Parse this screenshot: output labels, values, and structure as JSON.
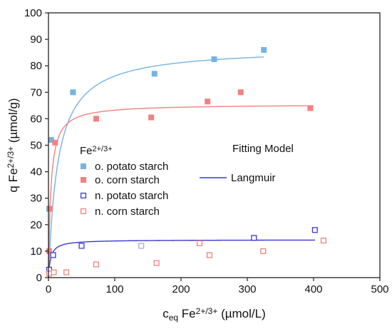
{
  "chart_data": {
    "type": "scatter",
    "xlabel": {
      "base": "c",
      "sub": "eq",
      "mid": " Fe",
      "sup": "2+/3+",
      "unit": " (µmol/L)"
    },
    "ylabel": {
      "base": "q Fe",
      "sup": "2+/3+",
      "unit": " (µmol/g)"
    },
    "xlim": [
      0,
      500
    ],
    "ylim": [
      0,
      100
    ],
    "x_ticks": [
      0,
      100,
      200,
      300,
      400,
      500
    ],
    "y_ticks": [
      0,
      10,
      20,
      30,
      40,
      50,
      60,
      70,
      80,
      90,
      100
    ],
    "grid": false,
    "legend": {
      "placement": "center-left",
      "title": {
        "base": "Fe",
        "sup": "2+/3+"
      },
      "model_title": "Fitting Model",
      "model_entry": "Langmuir"
    },
    "series": [
      {
        "name": "o. potato starch",
        "marker": "filled-square",
        "color": "#74b3e6",
        "x": [
          1,
          4,
          37,
          160,
          250,
          325
        ],
        "y": [
          26,
          52,
          70,
          77,
          82.5,
          86
        ],
        "fit": {
          "model": "Langmuir",
          "qmax": 87,
          "K": 0.07,
          "x_max": 325,
          "color": "#74b3e6"
        }
      },
      {
        "name": "o. corn starch",
        "marker": "filled-square",
        "color": "#f3817f",
        "x": [
          1,
          2,
          10,
          72,
          155,
          240,
          290,
          395
        ],
        "y": [
          10,
          26,
          51,
          60,
          60.5,
          66.5,
          70,
          64
        ],
        "fit": {
          "model": "Langmuir",
          "qmax": 65.5,
          "K": 0.28,
          "x_max": 400,
          "color": "#f3817f"
        }
      },
      {
        "name": "n. potato starch",
        "marker": "open-square",
        "color": "#3a3ad0",
        "x": [
          1,
          7,
          50,
          310,
          402
        ],
        "y": [
          3,
          8.5,
          12,
          15,
          18
        ],
        "fit": {
          "model": "Langmuir",
          "qmax": 14.3,
          "K": 0.3,
          "x_max": 402,
          "color": "#3a3ad0"
        }
      },
      {
        "name": "n. corn starch",
        "marker": "open-square",
        "color": "#f3817f",
        "x": [
          1,
          8,
          27,
          72,
          163,
          228,
          243,
          324,
          415
        ],
        "y": [
          1.5,
          2,
          2,
          5,
          5.5,
          13,
          8.5,
          10,
          14
        ],
        "fit": null
      }
    ],
    "extra_points": [
      {
        "color": "#a9a9d8",
        "marker": "open-square",
        "x": [
          140
        ],
        "y": [
          12
        ]
      }
    ]
  }
}
